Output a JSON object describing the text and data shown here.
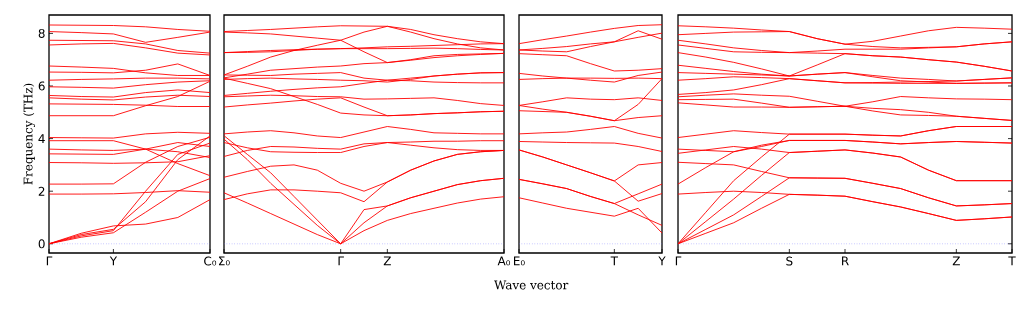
{
  "chart_data": [
    {
      "type": "line",
      "ylabel": "Frequency (THz)",
      "categories": [
        "Γ",
        null,
        "Y",
        null,
        null,
        "C₀"
      ],
      "ylim": [
        -0.35,
        8.7
      ],
      "yticks": [
        0,
        2,
        4,
        6,
        8
      ],
      "marker": "none",
      "line_style": "solid",
      "ref_lines": [
        {
          "axis": "y",
          "value": 0,
          "color": "#6a6aff",
          "line_style": "dotted"
        }
      ],
      "series": [
        {
          "color": "#ff0000",
          "values": [
            8.32,
            8.31,
            8.3,
            8.25,
            8.15,
            8.08
          ]
        },
        {
          "color": "#ff0000",
          "values": [
            8.07,
            8.03,
            7.98,
            7.66,
            7.85,
            8.05
          ]
        },
        {
          "color": "#ff0000",
          "values": [
            7.74,
            7.73,
            7.72,
            7.6,
            7.35,
            7.25
          ]
        },
        {
          "color": "#ff0000",
          "values": [
            7.56,
            7.6,
            7.62,
            7.45,
            7.25,
            7.18
          ]
        },
        {
          "color": "#ff0000",
          "values": [
            6.76,
            6.72,
            6.67,
            6.5,
            6.4,
            6.4
          ]
        },
        {
          "color": "#ff0000",
          "values": [
            6.53,
            6.52,
            6.5,
            6.6,
            6.84,
            6.4
          ]
        },
        {
          "color": "#ff0000",
          "values": [
            6.22,
            6.25,
            6.27,
            6.3,
            6.3,
            6.27
          ]
        },
        {
          "color": "#ff0000",
          "values": [
            5.97,
            5.95,
            5.92,
            6.05,
            6.15,
            6.2
          ]
        },
        {
          "color": "#ff0000",
          "values": [
            5.64,
            5.6,
            5.58,
            5.75,
            5.85,
            5.75
          ]
        },
        {
          "color": "#ff0000",
          "values": [
            5.55,
            5.5,
            5.47,
            5.58,
            5.65,
            5.6
          ]
        },
        {
          "color": "#ff0000",
          "values": [
            5.32,
            5.31,
            5.3,
            5.27,
            5.22,
            5.22
          ]
        },
        {
          "color": "#ff0000",
          "values": [
            4.87,
            4.87,
            4.87,
            5.25,
            5.6,
            6.18
          ]
        },
        {
          "color": "#ff0000",
          "values": [
            4.04,
            4.03,
            4.02,
            4.18,
            4.24,
            4.2
          ]
        },
        {
          "color": "#ff0000",
          "values": [
            3.92,
            3.92,
            3.92,
            3.6,
            3.05,
            2.59
          ]
        },
        {
          "color": "#ff0000",
          "values": [
            3.6,
            3.57,
            3.55,
            3.6,
            3.5,
            3.28
          ]
        },
        {
          "color": "#ff0000",
          "values": [
            3.42,
            3.41,
            3.4,
            3.6,
            3.85,
            3.7
          ]
        },
        {
          "color": "#ff0000",
          "values": [
            3.09,
            3.08,
            3.06,
            3.08,
            3.12,
            3.35
          ]
        },
        {
          "color": "#ff0000",
          "values": [
            2.27,
            2.27,
            2.28,
            3.1,
            3.7,
            4.05
          ]
        },
        {
          "color": "#ff0000",
          "values": [
            1.89,
            1.89,
            1.9,
            1.95,
            2.02,
            1.96
          ]
        },
        {
          "color": "#ff0000",
          "values": [
            0,
            0.4,
            0.68,
            0.75,
            1.0,
            1.68
          ]
        },
        {
          "color": "#ff0000",
          "values": [
            0,
            0.35,
            0.55,
            1.6,
            3.2,
            4.1
          ]
        },
        {
          "color": "#ff0000",
          "values": [
            0,
            0.25,
            0.42,
            1.2,
            2.0,
            2.48
          ]
        },
        {
          "color": "#ff0000",
          "values": [
            0,
            0.3,
            0.5,
            2.0,
            3.4,
            3.83
          ]
        }
      ]
    },
    {
      "type": "line",
      "categories": [
        "Σ₀",
        null,
        null,
        null,
        null,
        "Γ",
        null,
        "Z",
        null,
        null,
        null,
        null,
        "A₀"
      ],
      "ylim": [
        -0.35,
        8.7
      ],
      "tick_labels": "x",
      "marker": "none",
      "line_style": "solid",
      "ref_lines": [
        {
          "axis": "y",
          "value": 0,
          "color": "#6a6aff",
          "line_style": "dotted"
        }
      ],
      "series": [
        {
          "color": "#ff0000",
          "values": [
            4.11,
            3.4,
            2.7,
            1.8,
            0.9,
            0,
            0.5,
            0.89,
            1.15,
            1.35,
            1.55,
            1.7,
            1.79
          ]
        },
        {
          "color": "#ff0000",
          "values": [
            3.98,
            3.2,
            2.3,
            1.5,
            0.7,
            0,
            0.8,
            1.44,
            1.75,
            2.0,
            2.25,
            2.4,
            2.49
          ]
        },
        {
          "color": "#ff0000",
          "values": [
            1.94,
            1.55,
            1.15,
            0.75,
            0.35,
            0,
            1.3,
            1.44,
            1.75,
            2.0,
            2.25,
            2.4,
            2.49
          ]
        },
        {
          "color": "#ff0000",
          "values": [
            1.68,
            1.9,
            2.05,
            2.05,
            2.0,
            1.94,
            1.6,
            2.35,
            2.8,
            3.15,
            3.4,
            3.5,
            3.55
          ]
        },
        {
          "color": "#ff0000",
          "values": [
            2.53,
            2.75,
            2.95,
            3.0,
            2.8,
            2.3,
            2.0,
            2.35,
            2.8,
            3.15,
            3.4,
            3.5,
            3.55
          ]
        },
        {
          "color": "#ff0000",
          "values": [
            3.32,
            3.55,
            3.7,
            3.68,
            3.63,
            3.6,
            3.8,
            3.85,
            3.87,
            3.9,
            3.9,
            3.92,
            3.92
          ]
        },
        {
          "color": "#ff0000",
          "values": [
            3.85,
            3.65,
            3.5,
            3.48,
            3.47,
            3.47,
            3.7,
            3.85,
            3.75,
            3.65,
            3.58,
            3.55,
            3.55
          ]
        },
        {
          "color": "#ff0000",
          "values": [
            4.18,
            4.25,
            4.3,
            4.22,
            4.1,
            4.04,
            4.25,
            4.46,
            4.35,
            4.22,
            4.2,
            4.18,
            4.18
          ]
        },
        {
          "color": "#ff0000",
          "values": [
            5.2,
            5.28,
            5.35,
            5.43,
            5.5,
            5.55,
            5.2,
            4.87,
            4.9,
            4.95,
            4.98,
            5.02,
            5.04
          ]
        },
        {
          "color": "#ff0000",
          "values": [
            5.59,
            5.62,
            5.65,
            5.63,
            5.6,
            5.59,
            5.5,
            5.51,
            5.53,
            5.55,
            5.45,
            5.33,
            5.26
          ]
        },
        {
          "color": "#ff0000",
          "values": [
            6.3,
            6.1,
            5.9,
            5.6,
            5.3,
            4.97,
            4.9,
            4.87,
            4.9,
            4.95,
            4.98,
            5.02,
            5.04
          ]
        },
        {
          "color": "#ff0000",
          "values": [
            5.64,
            5.72,
            5.8,
            5.87,
            5.93,
            5.97,
            6.1,
            6.22,
            6.2,
            6.15,
            6.13,
            6.12,
            6.12
          ]
        },
        {
          "color": "#ff0000",
          "values": [
            6.25,
            6.28,
            6.3,
            6.27,
            6.25,
            6.22,
            6.2,
            6.15,
            6.25,
            6.38,
            6.45,
            6.5,
            6.51
          ]
        },
        {
          "color": "#ff0000",
          "values": [
            6.42,
            6.41,
            6.4,
            6.45,
            6.48,
            6.51,
            6.3,
            6.22,
            6.3,
            6.38,
            6.45,
            6.5,
            6.51
          ]
        },
        {
          "color": "#ff0000",
          "values": [
            6.31,
            6.45,
            6.6,
            6.66,
            6.72,
            6.76,
            6.85,
            6.89,
            6.98,
            7.08,
            7.15,
            7.2,
            7.24
          ]
        },
        {
          "color": "#ff0000",
          "values": [
            7.27,
            7.31,
            7.35,
            7.38,
            7.4,
            7.42,
            7.45,
            7.49,
            7.51,
            7.54,
            7.57,
            7.6,
            7.61
          ]
        },
        {
          "color": "#ff0000",
          "values": [
            6.42,
            6.75,
            7.1,
            7.35,
            7.55,
            7.74,
            8.05,
            8.27,
            8.05,
            7.8,
            7.6,
            7.45,
            7.37
          ]
        },
        {
          "color": "#ff0000",
          "values": [
            8.07,
            8.11,
            8.15,
            8.2,
            8.25,
            8.29,
            8.28,
            8.27,
            8.15,
            7.95,
            7.8,
            7.68,
            7.61
          ]
        },
        {
          "color": "#ff0000",
          "values": [
            8.05,
            8.02,
            7.98,
            7.9,
            7.82,
            7.74,
            7.3,
            6.89,
            7.0,
            7.15,
            7.2,
            7.22,
            7.24
          ]
        },
        {
          "color": "#ff0000",
          "values": [
            7.27,
            7.28,
            7.3,
            7.35,
            7.4,
            7.42,
            7.42,
            7.42,
            7.43,
            7.44,
            7.42,
            7.39,
            7.37
          ]
        }
      ]
    },
    {
      "type": "line",
      "xlabel": "Wave vector",
      "categories": [
        "E₀",
        null,
        null,
        null,
        "T",
        null,
        "Y"
      ],
      "ylim": [
        -0.35,
        8.7
      ],
      "tick_labels": "x",
      "marker": "none",
      "line_style": "solid",
      "ref_lines": [
        {
          "axis": "y",
          "value": 0,
          "color": "#6a6aff",
          "line_style": "dotted"
        }
      ],
      "series": [
        {
          "color": "#ff0000",
          "values": [
            7.61,
            7.76,
            7.9,
            8.05,
            8.19,
            8.3,
            8.33
          ]
        },
        {
          "color": "#ff0000",
          "values": [
            7.37,
            7.33,
            7.3,
            7.5,
            7.68,
            8.1,
            7.78
          ]
        },
        {
          "color": "#ff0000",
          "values": [
            7.37,
            7.43,
            7.5,
            7.6,
            7.68,
            7.85,
            8.01
          ]
        },
        {
          "color": "#ff0000",
          "values": [
            7.23,
            7.19,
            7.15,
            6.85,
            6.57,
            6.6,
            6.66
          ]
        },
        {
          "color": "#ff0000",
          "values": [
            6.48,
            6.38,
            6.3,
            6.3,
            6.29,
            6.3,
            6.28
          ]
        },
        {
          "color": "#ff0000",
          "values": [
            6.25,
            6.28,
            6.3,
            6.22,
            6.15,
            6.4,
            6.53
          ]
        },
        {
          "color": "#ff0000",
          "values": [
            5.26,
            5.4,
            5.55,
            5.5,
            5.48,
            5.55,
            5.45
          ]
        },
        {
          "color": "#ff0000",
          "values": [
            5.06,
            5.03,
            5.0,
            4.85,
            4.68,
            5.3,
            6.28
          ]
        },
        {
          "color": "#ff0000",
          "values": [
            5.26,
            5.12,
            5.0,
            4.85,
            4.68,
            4.8,
            4.87
          ]
        },
        {
          "color": "#ff0000",
          "values": [
            4.18,
            4.22,
            4.25,
            4.35,
            4.46,
            4.2,
            4.02
          ]
        },
        {
          "color": "#ff0000",
          "values": [
            3.89,
            3.87,
            3.85,
            3.84,
            3.83,
            3.7,
            3.51
          ]
        },
        {
          "color": "#ff0000",
          "values": [
            3.57,
            3.3,
            3.0,
            2.7,
            2.39,
            3.0,
            3.09
          ]
        },
        {
          "color": "#ff0000",
          "values": [
            3.57,
            3.3,
            3.0,
            2.7,
            2.39,
            1.62,
            1.91
          ]
        },
        {
          "color": "#ff0000",
          "values": [
            2.45,
            2.28,
            2.1,
            1.8,
            1.53,
            1.9,
            2.27
          ]
        },
        {
          "color": "#ff0000",
          "values": [
            2.45,
            2.28,
            2.1,
            1.8,
            1.53,
            1.1,
            0.7
          ]
        },
        {
          "color": "#ff0000",
          "values": [
            1.75,
            1.55,
            1.35,
            1.2,
            1.05,
            1.35,
            0.41
          ]
        }
      ]
    },
    {
      "type": "line",
      "categories": [
        "Γ",
        null,
        null,
        null,
        "S",
        null,
        "R",
        null,
        null,
        null,
        "Z",
        null,
        "T"
      ],
      "ylim": [
        -0.35,
        8.7
      ],
      "yticks": [
        0,
        2,
        4,
        6,
        8
      ],
      "tick_labels": "x",
      "marker": "none",
      "line_style": "solid",
      "ref_lines": [
        {
          "axis": "y",
          "value": 0,
          "color": "#6a6aff",
          "line_style": "dotted"
        }
      ],
      "series": [
        {
          "color": "#ff0000",
          "values": [
            8.29,
            8.25,
            8.2,
            8.13,
            8.07,
            7.8,
            7.59,
            7.7,
            7.9,
            8.1,
            8.23,
            8.2,
            8.16
          ]
        },
        {
          "color": "#ff0000",
          "values": [
            7.95,
            8.0,
            8.05,
            8.06,
            8.07,
            7.8,
            7.59,
            7.5,
            7.45,
            7.47,
            7.49,
            7.6,
            7.68
          ]
        },
        {
          "color": "#ff0000",
          "values": [
            7.74,
            7.6,
            7.45,
            7.35,
            7.27,
            7.25,
            7.23,
            7.15,
            7.1,
            7.0,
            6.91,
            6.75,
            6.57
          ]
        },
        {
          "color": "#ff0000",
          "values": [
            7.56,
            7.43,
            7.3,
            7.28,
            7.27,
            7.33,
            7.4,
            7.4,
            7.4,
            7.45,
            7.49,
            7.6,
            7.68
          ]
        },
        {
          "color": "#ff0000",
          "values": [
            7.27,
            7.1,
            6.9,
            6.65,
            6.38,
            6.8,
            7.23,
            7.15,
            7.1,
            7.0,
            6.91,
            6.75,
            6.57
          ]
        },
        {
          "color": "#ff0000",
          "values": [
            6.79,
            6.67,
            6.55,
            6.45,
            6.38,
            6.45,
            6.51,
            6.4,
            6.3,
            6.25,
            6.19,
            6.25,
            6.31
          ]
        },
        {
          "color": "#ff0000",
          "values": [
            6.51,
            6.48,
            6.45,
            6.42,
            6.38,
            6.45,
            6.51,
            6.35,
            6.2,
            6.15,
            6.1,
            6.11,
            6.12
          ]
        },
        {
          "color": "#ff0000",
          "values": [
            6.22,
            6.28,
            6.35,
            6.32,
            6.28,
            6.2,
            6.12,
            6.11,
            6.1,
            6.1,
            6.1,
            6.11,
            6.12
          ]
        },
        {
          "color": "#ff0000",
          "values": [
            5.68,
            5.75,
            5.85,
            6.05,
            6.28,
            6.2,
            6.12,
            6.13,
            6.15,
            6.17,
            6.19,
            6.25,
            6.31
          ]
        },
        {
          "color": "#ff0000",
          "values": [
            5.59,
            5.65,
            5.7,
            5.65,
            5.61,
            5.42,
            5.23,
            5.4,
            5.6,
            5.55,
            5.51,
            5.5,
            5.48
          ]
        },
        {
          "color": "#ff0000",
          "values": [
            5.48,
            5.49,
            5.5,
            5.35,
            5.19,
            5.21,
            5.23,
            5.15,
            5.1,
            5.0,
            4.85,
            4.77,
            4.69
          ]
        },
        {
          "color": "#ff0000",
          "values": [
            5.36,
            5.28,
            5.2,
            5.2,
            5.19,
            5.21,
            5.23,
            5.05,
            4.9,
            4.88,
            4.85,
            4.77,
            4.69
          ]
        },
        {
          "color": "#ff0000",
          "values": [
            4.04,
            4.17,
            4.3,
            4.23,
            4.17,
            4.17,
            4.17,
            4.13,
            4.1,
            4.3,
            4.46,
            4.46,
            4.46
          ]
        },
        {
          "color": "#ff0000",
          "values": [
            3.6,
            3.55,
            3.5,
            3.7,
            3.93,
            3.93,
            3.93,
            3.87,
            3.8,
            3.85,
            3.89,
            3.86,
            3.83
          ]
        },
        {
          "color": "#ff0000",
          "values": [
            3.44,
            3.57,
            3.7,
            3.6,
            3.47,
            3.52,
            3.57,
            3.45,
            3.3,
            2.8,
            2.4,
            2.4,
            2.4
          ]
        },
        {
          "color": "#ff0000",
          "values": [
            3.1,
            3.05,
            3.0,
            2.75,
            2.51,
            2.5,
            2.49,
            2.3,
            2.1,
            1.75,
            1.44,
            1.48,
            1.53
          ]
        },
        {
          "color": "#ff0000",
          "values": [
            2.27,
            2.9,
            3.5,
            3.75,
            3.93,
            3.93,
            3.93,
            3.87,
            3.8,
            3.85,
            3.89,
            3.86,
            3.83
          ]
        },
        {
          "color": "#ff0000",
          "values": [
            1.89,
            1.95,
            2.0,
            1.95,
            1.88,
            1.85,
            1.81,
            1.6,
            1.4,
            1.15,
            0.89,
            0.95,
            1.02
          ]
        },
        {
          "color": "#ff0000",
          "values": [
            0,
            1.2,
            2.4,
            3.3,
            4.17,
            4.17,
            4.17,
            4.13,
            4.1,
            4.3,
            4.46,
            4.46,
            4.46
          ]
        },
        {
          "color": "#ff0000",
          "values": [
            0,
            0.85,
            1.7,
            2.6,
            3.47,
            3.52,
            3.57,
            3.45,
            3.3,
            2.8,
            2.4,
            2.4,
            2.4
          ]
        },
        {
          "color": "#ff0000",
          "values": [
            0,
            0.55,
            1.1,
            1.8,
            2.51,
            2.5,
            2.49,
            2.3,
            2.1,
            1.75,
            1.44,
            1.48,
            1.53
          ]
        },
        {
          "color": "#ff0000",
          "values": [
            0,
            0.4,
            0.8,
            1.35,
            1.88,
            1.85,
            1.81,
            1.6,
            1.4,
            1.15,
            0.89,
            0.95,
            1.02
          ]
        }
      ]
    }
  ]
}
